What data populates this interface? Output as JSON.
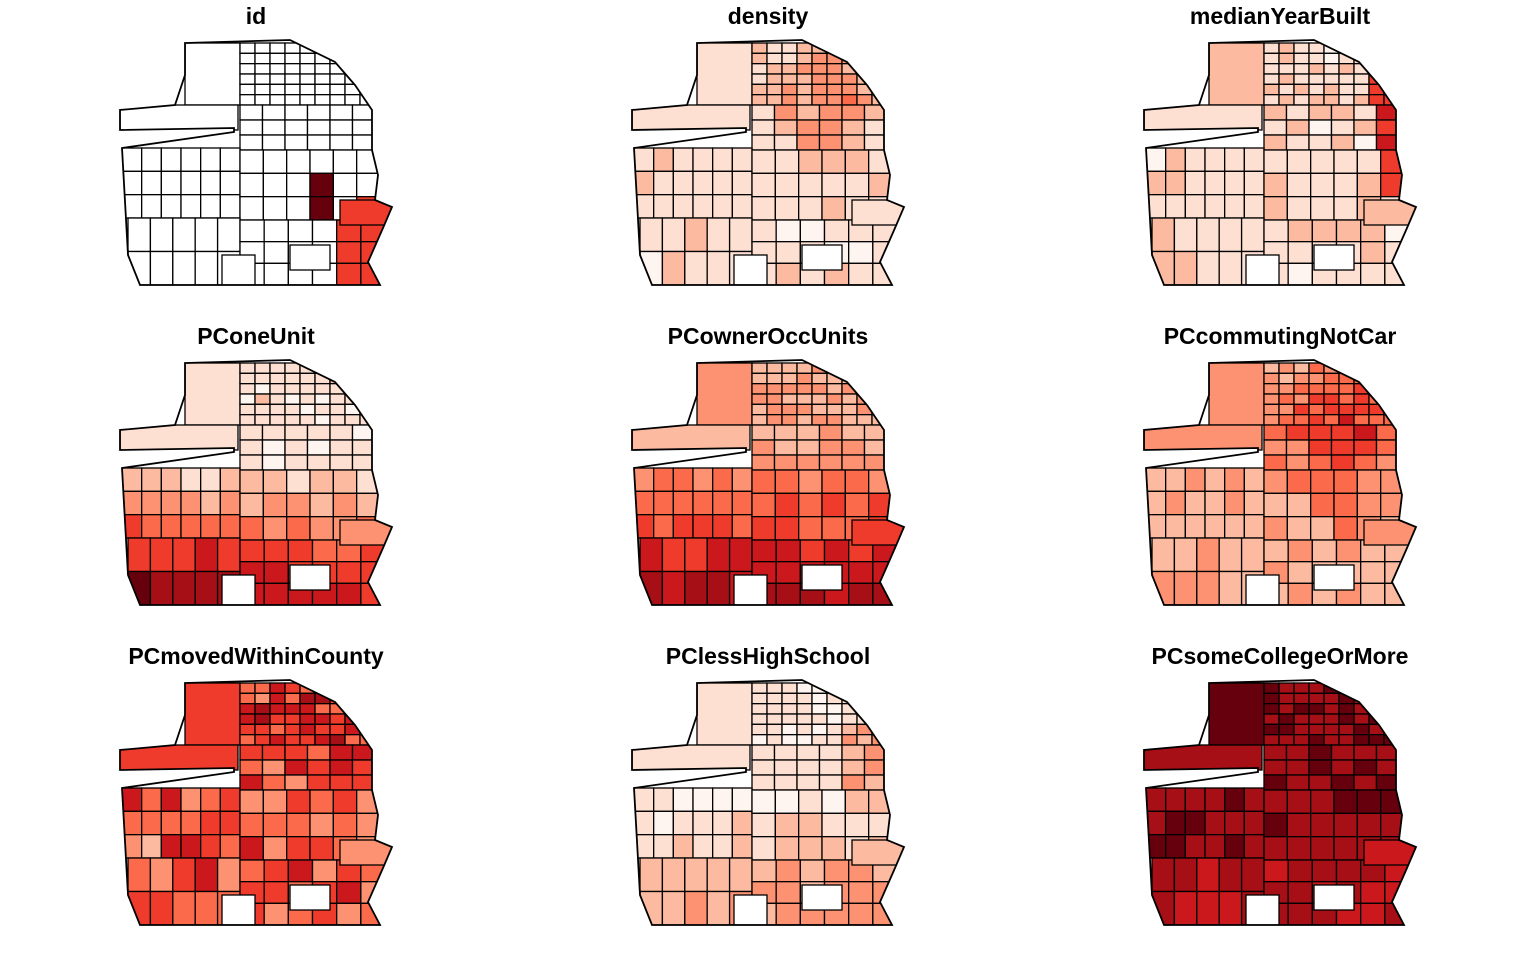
{
  "figure": {
    "panels": [
      {
        "title": "id",
        "scheme": "id"
      },
      {
        "title": "density",
        "scheme": "density"
      },
      {
        "title": "medianYearBuilt",
        "scheme": "year"
      },
      {
        "title": "PConeUnit",
        "scheme": "oneunit"
      },
      {
        "title": "PCownerOccUnits",
        "scheme": "owner"
      },
      {
        "title": "PCcommutingNotCar",
        "scheme": "commute"
      },
      {
        "title": "PCmovedWithinCounty",
        "scheme": "moved"
      },
      {
        "title": "PClessHighSchool",
        "scheme": "lesshs"
      },
      {
        "title": "PCsomeCollegeOrMore",
        "scheme": "college"
      }
    ],
    "palette": [
      "#FFF5F0",
      "#FEE0D2",
      "#FCBBA1",
      "#FC9272",
      "#FB6A4A",
      "#EF3B2C",
      "#CB181D",
      "#A50F15",
      "#67000D"
    ],
    "outline_color": "#000000"
  }
}
